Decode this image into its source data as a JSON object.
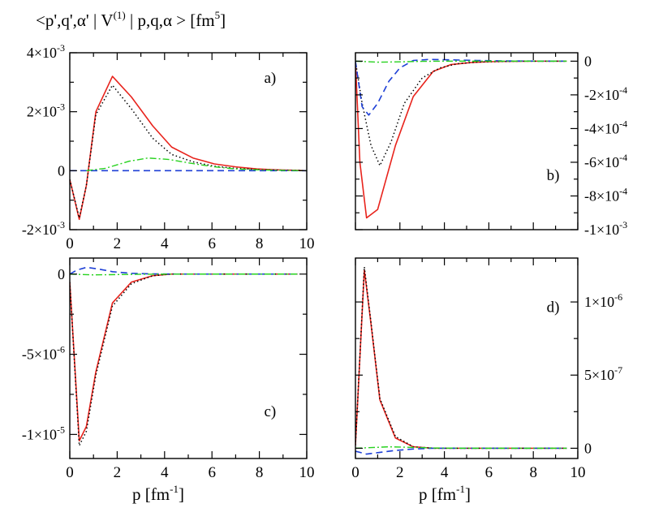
{
  "figure_title": {
    "base": "<p',q',α' | V",
    "sup1": "(1)",
    "mid": " | p,q,α > [fm",
    "sup2": "5",
    "end": "]"
  },
  "x_axis_label": {
    "base": "p [fm",
    "sup": "-1",
    "end": "]"
  },
  "colors": {
    "solid": "#e8231c",
    "dotted": "#000000",
    "dashed": "#1d3fd6",
    "dashdot": "#27d21e"
  },
  "chart_data": [
    {
      "type": "line",
      "panel": "a)",
      "yaxis_side": "left",
      "xlim": [
        0,
        10
      ],
      "ylim": [
        -0.002,
        0.004
      ],
      "xticks": [
        0,
        2,
        4,
        6,
        8,
        10
      ],
      "xtick_labels": [
        "0",
        "2",
        "4",
        "6",
        "8",
        "10"
      ],
      "yticks": [
        -0.002,
        0,
        0.002,
        0.004
      ],
      "ytick_labels": [
        {
          "mant": "-2×10",
          "exp": "-3"
        },
        {
          "mant": "0",
          "exp": ""
        },
        {
          "mant": "2×10",
          "exp": "-3"
        },
        {
          "mant": "4×10",
          "exp": "-3"
        }
      ],
      "series": [
        {
          "style": "solid",
          "x": [
            0,
            0.4,
            0.7,
            1.1,
            1.8,
            2.6,
            3.5,
            4.3,
            5.2,
            6.1,
            7.0,
            7.9,
            8.7,
            9.6,
            10.0
          ],
          "y": [
            -0.0003,
            -0.00165,
            -0.0005,
            0.002,
            0.0032,
            0.0025,
            0.00152,
            0.0008,
            0.00043,
            0.00023,
            0.00013,
            6e-05,
            3e-05,
            1e-05,
            0
          ]
        },
        {
          "style": "dotted",
          "x": [
            0,
            0.4,
            0.7,
            1.1,
            1.8,
            2.6,
            3.5,
            4.3,
            5.2,
            6.1,
            7.0,
            7.9,
            8.7,
            9.6,
            10.0
          ],
          "y": [
            -0.0003,
            -0.0016,
            -0.0005,
            0.0019,
            0.0029,
            0.0021,
            0.0011,
            0.00055,
            0.0003,
            0.00015,
            8e-05,
            4e-05,
            2e-05,
            1e-05,
            0
          ]
        },
        {
          "style": "dashed",
          "x": [
            0,
            0.7,
            2,
            4,
            6,
            8,
            10
          ],
          "y": [
            0,
            0,
            0,
            0,
            0,
            0,
            0
          ]
        },
        {
          "style": "dashdot",
          "x": [
            0.7,
            1.5,
            2.5,
            3.3,
            4.2,
            5.2,
            6.1,
            7.0,
            7.9,
            9.0,
            10.0
          ],
          "y": [
            0,
            8e-05,
            0.00032,
            0.00043,
            0.00038,
            0.00024,
            0.00013,
            6e-05,
            3e-05,
            1e-05,
            0
          ]
        }
      ]
    },
    {
      "type": "line",
      "panel": "b)",
      "yaxis_side": "right",
      "xlim": [
        0,
        10
      ],
      "ylim": [
        -0.001,
        5e-05
      ],
      "xticks": [
        0,
        2,
        4,
        6,
        8,
        10
      ],
      "xtick_labels": [],
      "yticks": [
        -0.001,
        -0.0008,
        -0.0006,
        -0.0004,
        -0.0002,
        0
      ],
      "ytick_labels": [
        {
          "mant": "-1×10",
          "exp": "-3"
        },
        {
          "mant": "-8×10",
          "exp": "-4"
        },
        {
          "mant": "-6×10",
          "exp": "-4"
        },
        {
          "mant": "-4×10",
          "exp": "-4"
        },
        {
          "mant": "-2×10",
          "exp": "-4"
        },
        {
          "mant": "0",
          "exp": ""
        }
      ],
      "series": [
        {
          "style": "solid",
          "x": [
            0,
            0.2,
            0.5,
            1.0,
            1.8,
            2.6,
            3.5,
            4.3,
            5.2,
            6.1,
            7.0,
            8.0,
            9.5
          ],
          "y": [
            0,
            -0.0006,
            -0.00093,
            -0.00088,
            -0.0005,
            -0.00021,
            -6e-05,
            -2e-05,
            -8e-06,
            -3e-06,
            -1e-06,
            0,
            0
          ]
        },
        {
          "style": "dotted",
          "x": [
            0,
            0.3,
            0.7,
            1.1,
            1.6,
            2.2,
            3.0,
            3.8,
            4.6,
            5.5,
            6.5,
            7.5,
            9.5
          ],
          "y": [
            0,
            -0.00025,
            -0.0005,
            -0.00062,
            -0.00048,
            -0.00025,
            -0.0001,
            -4e-05,
            -1.5e-05,
            -5e-06,
            -2e-06,
            0,
            0
          ]
        },
        {
          "style": "dashed",
          "x": [
            0,
            0.3,
            0.6,
            1.0,
            1.5,
            2.0,
            2.6,
            3.3,
            4.3,
            5.5,
            7.0,
            9.5
          ],
          "y": [
            0,
            -0.00027,
            -0.00032,
            -0.00025,
            -0.00012,
            -4e-05,
            4e-06,
            1e-05,
            8e-06,
            4e-06,
            1e-06,
            0
          ]
        },
        {
          "style": "dashdot",
          "x": [
            0,
            1.0,
            2.0,
            3.0,
            4.0,
            6.0,
            8.0,
            9.5
          ],
          "y": [
            0,
            -6e-06,
            -4e-06,
            -1e-06,
            0,
            0,
            0,
            0
          ]
        }
      ]
    },
    {
      "type": "line",
      "panel": "c)",
      "yaxis_side": "left",
      "xlim": [
        0,
        10
      ],
      "ylim": [
        -1.15e-05,
        1e-06
      ],
      "xticks": [
        0,
        2,
        4,
        6,
        8,
        10
      ],
      "xtick_labels": [
        "0",
        "2",
        "4",
        "6",
        "8",
        "10"
      ],
      "yticks": [
        -1e-05,
        -5e-06,
        0
      ],
      "ytick_labels": [
        {
          "mant": "-1×10",
          "exp": "-5"
        },
        {
          "mant": "-5×10",
          "exp": "-6"
        },
        {
          "mant": "0",
          "exp": ""
        }
      ],
      "series": [
        {
          "style": "solid",
          "x": [
            0,
            0.4,
            0.7,
            1.1,
            1.8,
            2.6,
            3.5,
            4.3,
            5.5,
            7.0,
            8.5,
            9.6
          ],
          "y": [
            -5e-07,
            -1.04e-05,
            -9.5e-06,
            -6.1e-06,
            -1.8e-06,
            -5e-07,
            -1e-07,
            0,
            0,
            0,
            0,
            0
          ]
        },
        {
          "style": "dotted",
          "x": [
            0,
            0.4,
            0.7,
            1.1,
            1.8,
            2.6,
            3.5,
            4.3,
            5.5,
            7.0,
            8.5,
            9.6
          ],
          "y": [
            -5e-07,
            -1.07e-05,
            -9.8e-06,
            -6.3e-06,
            -2e-06,
            -6e-07,
            -1e-07,
            0,
            0,
            0,
            0,
            0
          ]
        },
        {
          "style": "dashed",
          "x": [
            0,
            0.3,
            0.7,
            1.2,
            1.8,
            2.6,
            3.5,
            4.5,
            6.0,
            9.6
          ],
          "y": [
            0,
            2.5e-07,
            4.2e-07,
            3.2e-07,
            1.5e-07,
            5e-08,
            1e-08,
            0,
            0,
            0
          ]
        },
        {
          "style": "dashdot",
          "x": [
            0,
            1.0,
            2.0,
            3.0,
            5.0,
            7.0,
            9.6
          ],
          "y": [
            0,
            -5e-08,
            -3e-08,
            -1e-08,
            0,
            0,
            0
          ]
        }
      ]
    },
    {
      "type": "line",
      "panel": "d)",
      "yaxis_side": "right",
      "xlim": [
        0,
        10
      ],
      "ylim": [
        -7e-08,
        1.3e-06
      ],
      "xticks": [
        0,
        2,
        4,
        6,
        8,
        10
      ],
      "xtick_labels": [
        "0",
        "2",
        "4",
        "6",
        "8",
        "10"
      ],
      "yticks": [
        0,
        5e-07,
        1e-06
      ],
      "ytick_labels": [
        {
          "mant": "0",
          "exp": ""
        },
        {
          "mant": "5×10",
          "exp": "-7"
        },
        {
          "mant": "1×10",
          "exp": "-6"
        }
      ],
      "series": [
        {
          "style": "solid",
          "x": [
            0,
            0.4,
            0.7,
            1.1,
            1.8,
            2.6,
            3.5,
            4.3,
            5.5,
            7.0,
            8.5,
            9.5
          ],
          "y": [
            2e-08,
            1.22e-06,
            8.5e-07,
            3.3e-07,
            7e-08,
            1e-08,
            0,
            0,
            0,
            0,
            0,
            0
          ]
        },
        {
          "style": "dotted",
          "x": [
            0,
            0.4,
            0.7,
            1.1,
            1.8,
            2.6,
            3.5,
            4.3,
            5.5,
            7.0,
            8.5,
            9.5
          ],
          "y": [
            2e-08,
            1.24e-06,
            8.6e-07,
            3.4e-07,
            8e-08,
            1e-08,
            0,
            0,
            0,
            0,
            0,
            0
          ]
        },
        {
          "style": "dashed",
          "x": [
            0,
            0.5,
            1.0,
            1.8,
            2.6,
            3.5,
            4.5,
            6.0,
            9.5
          ],
          "y": [
            -2e-08,
            -4e-08,
            -3e-08,
            -1.5e-08,
            -5e-09,
            0,
            0,
            0,
            0
          ]
        },
        {
          "style": "dashdot",
          "x": [
            0,
            0.8,
            1.5,
            2.5,
            3.5,
            5.0,
            7.0,
            9.5
          ],
          "y": [
            0,
            5e-09,
            1e-08,
            6e-09,
            2e-09,
            0,
            0,
            0
          ]
        }
      ]
    }
  ]
}
